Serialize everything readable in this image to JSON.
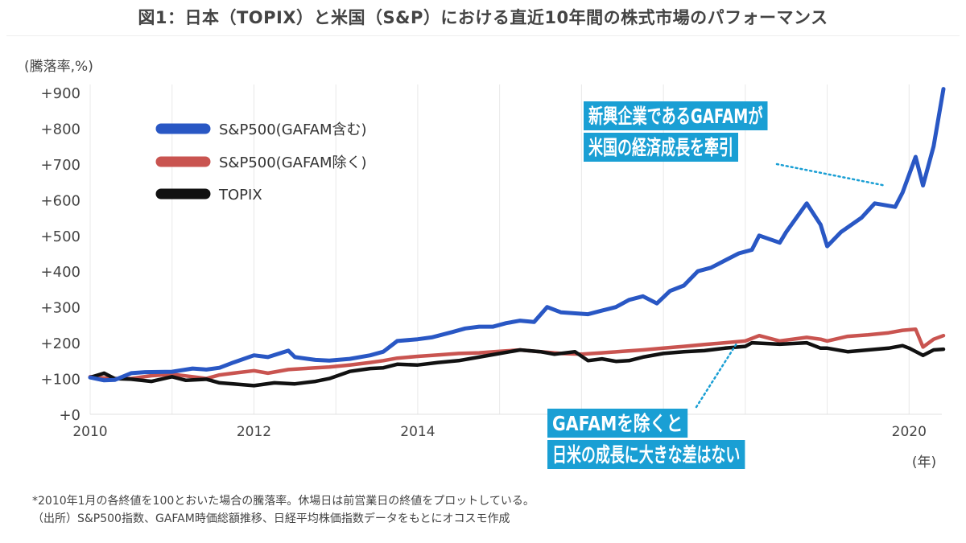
{
  "title": "図1：日本（TOPIX）と米国（S&P）における直近10年間の株式市場のパフォーマンス",
  "chart_data": {
    "type": "line",
    "ylabel": "(騰落率,%)",
    "xunit": "(年)",
    "xlim": [
      2010,
      2020.4
    ],
    "ylim": [
      0,
      900
    ],
    "x_ticks": [
      2010,
      2012,
      2014,
      2020
    ],
    "x_tick_labels": [
      "2010",
      "2012",
      "2014",
      "2020"
    ],
    "y_ticks": [
      0,
      100,
      200,
      300,
      400,
      500,
      600,
      700,
      800,
      900
    ],
    "y_tick_labels": [
      "+0",
      "+100",
      "+200",
      "+300",
      "+400",
      "+500",
      "+600",
      "+700",
      "+800",
      "+900"
    ],
    "grid": {
      "vertical": true,
      "horizontal": false
    },
    "legend_position": "top-left",
    "series": [
      {
        "name": "S&P500(GAFAM含む)",
        "color": "#2957c4",
        "x": [
          2010.0,
          2010.17,
          2010.3,
          2010.5,
          2010.67,
          2011.0,
          2011.25,
          2011.42,
          2011.58,
          2011.75,
          2012.0,
          2012.17,
          2012.42,
          2012.5,
          2012.75,
          2012.92,
          2013.17,
          2013.42,
          2013.58,
          2013.75,
          2014.0,
          2014.17,
          2014.42,
          2014.58,
          2014.75,
          2014.92,
          2015.08,
          2015.25,
          2015.42,
          2015.58,
          2015.75,
          2016.08,
          2016.25,
          2016.42,
          2016.58,
          2016.75,
          2016.92,
          2017.08,
          2017.25,
          2017.42,
          2017.58,
          2017.75,
          2017.92,
          2018.08,
          2018.17,
          2018.42,
          2018.5,
          2018.75,
          2018.92,
          2019.0,
          2019.17,
          2019.42,
          2019.58,
          2019.83,
          2019.92,
          2020.08,
          2020.17,
          2020.3,
          2020.42
        ],
        "values": [
          103,
          95,
          96,
          115,
          118,
          119,
          128,
          125,
          130,
          145,
          165,
          160,
          178,
          160,
          152,
          150,
          155,
          165,
          175,
          205,
          210,
          215,
          230,
          240,
          245,
          245,
          255,
          262,
          258,
          300,
          285,
          280,
          290,
          300,
          320,
          330,
          310,
          345,
          360,
          400,
          410,
          430,
          450,
          460,
          500,
          480,
          510,
          590,
          530,
          470,
          510,
          550,
          590,
          580,
          620,
          720,
          640,
          750,
          910
        ]
      },
      {
        "name": "S&P500(GAFAM除く)",
        "color": "#c95450",
        "x": [
          2010.0,
          2010.25,
          2010.5,
          2010.75,
          2011.0,
          2011.25,
          2011.42,
          2011.58,
          2011.75,
          2012.0,
          2012.17,
          2012.42,
          2012.75,
          2012.92,
          2013.17,
          2013.42,
          2013.58,
          2013.75,
          2014.0,
          2014.25,
          2014.5,
          2014.75,
          2015.0,
          2015.25,
          2015.5,
          2015.75,
          2016.0,
          2016.25,
          2016.5,
          2016.75,
          2017.0,
          2017.25,
          2017.5,
          2017.75,
          2018.0,
          2018.17,
          2018.42,
          2018.75,
          2018.92,
          2019.0,
          2019.25,
          2019.5,
          2019.75,
          2019.92,
          2020.08,
          2020.17,
          2020.3,
          2020.42
        ],
        "values": [
          105,
          100,
          100,
          108,
          112,
          105,
          100,
          110,
          115,
          122,
          115,
          125,
          130,
          132,
          138,
          145,
          150,
          157,
          162,
          166,
          170,
          172,
          176,
          180,
          175,
          170,
          168,
          172,
          176,
          180,
          185,
          190,
          195,
          200,
          205,
          220,
          205,
          215,
          210,
          205,
          218,
          222,
          228,
          235,
          238,
          188,
          210,
          220
        ]
      },
      {
        "name": "TOPIX",
        "color": "#111111",
        "x": [
          2010.0,
          2010.17,
          2010.3,
          2010.5,
          2010.75,
          2011.0,
          2011.17,
          2011.42,
          2011.58,
          2011.75,
          2012.0,
          2012.25,
          2012.5,
          2012.75,
          2012.92,
          2013.17,
          2013.42,
          2013.58,
          2013.75,
          2014.0,
          2014.25,
          2014.5,
          2014.75,
          2015.0,
          2015.25,
          2015.5,
          2015.67,
          2015.92,
          2016.08,
          2016.25,
          2016.42,
          2016.58,
          2016.75,
          2017.0,
          2017.25,
          2017.5,
          2017.75,
          2018.0,
          2018.08,
          2018.42,
          2018.75,
          2018.92,
          2019.0,
          2019.25,
          2019.5,
          2019.75,
          2019.92,
          2020.0,
          2020.17,
          2020.3,
          2020.42
        ],
        "values": [
          103,
          115,
          100,
          98,
          92,
          105,
          95,
          98,
          88,
          85,
          80,
          88,
          85,
          92,
          100,
          120,
          128,
          130,
          140,
          138,
          145,
          150,
          160,
          170,
          180,
          175,
          168,
          175,
          150,
          155,
          148,
          150,
          160,
          170,
          175,
          178,
          185,
          190,
          200,
          196,
          200,
          185,
          185,
          175,
          180,
          185,
          192,
          185,
          165,
          180,
          182
        ]
      }
    ],
    "annotations": [
      {
        "lines": [
          "新興企業であるGAFAMが",
          "米国の経済成長を牽引"
        ],
        "target_series": 0,
        "target_x": 2019.7,
        "target_y": 640
      },
      {
        "lines": [
          "GAFAMを除くと",
          "日米の成長に大きな差はない"
        ],
        "target_series": 1,
        "target_x": 2017.9,
        "target_y": 200
      }
    ]
  },
  "footnotes": [
    "*2010年1月の各終値を100とおいた場合の騰落率。休場日は前営業日の終値をプロットしている。",
    "（出所）S&P500指数、GAFAM時価総額推移、日経平均株価指数データをもとにオコスモ作成"
  ],
  "annotation_color": "#1a9fd4"
}
